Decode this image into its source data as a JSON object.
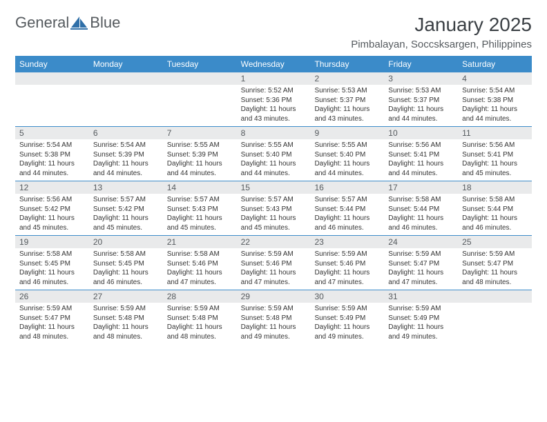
{
  "brand": {
    "name_part1": "General",
    "name_part2": "Blue"
  },
  "header": {
    "month_title": "January 2025",
    "location": "Pimbalayan, Soccsksargen, Philippines"
  },
  "style": {
    "header_bg": "#3b8bc9",
    "header_text": "#ffffff",
    "row_divider": "#3b8bc9",
    "daynum_bg": "#e9eaeb",
    "daynum_text": "#555a5e",
    "body_text": "#333333",
    "page_bg": "#ffffff",
    "title_text": "#3a3f44",
    "location_text": "#555a5e",
    "logo_text_color": "#555a5e",
    "logo_icon_color": "#2f6fa8",
    "font_family": "Arial, Helvetica, sans-serif",
    "month_title_fontsize": 28,
    "location_fontsize": 15,
    "dayheader_fontsize": 12,
    "daynum_fontsize": 12,
    "body_fontsize": 10
  },
  "day_names": [
    "Sunday",
    "Monday",
    "Tuesday",
    "Wednesday",
    "Thursday",
    "Friday",
    "Saturday"
  ],
  "weeks": [
    [
      {
        "n": "",
        "sr": "",
        "ss": "",
        "dl": ""
      },
      {
        "n": "",
        "sr": "",
        "ss": "",
        "dl": ""
      },
      {
        "n": "",
        "sr": "",
        "ss": "",
        "dl": ""
      },
      {
        "n": "1",
        "sr": "Sunrise: 5:52 AM",
        "ss": "Sunset: 5:36 PM",
        "dl": "Daylight: 11 hours and 43 minutes."
      },
      {
        "n": "2",
        "sr": "Sunrise: 5:53 AM",
        "ss": "Sunset: 5:37 PM",
        "dl": "Daylight: 11 hours and 43 minutes."
      },
      {
        "n": "3",
        "sr": "Sunrise: 5:53 AM",
        "ss": "Sunset: 5:37 PM",
        "dl": "Daylight: 11 hours and 44 minutes."
      },
      {
        "n": "4",
        "sr": "Sunrise: 5:54 AM",
        "ss": "Sunset: 5:38 PM",
        "dl": "Daylight: 11 hours and 44 minutes."
      }
    ],
    [
      {
        "n": "5",
        "sr": "Sunrise: 5:54 AM",
        "ss": "Sunset: 5:38 PM",
        "dl": "Daylight: 11 hours and 44 minutes."
      },
      {
        "n": "6",
        "sr": "Sunrise: 5:54 AM",
        "ss": "Sunset: 5:39 PM",
        "dl": "Daylight: 11 hours and 44 minutes."
      },
      {
        "n": "7",
        "sr": "Sunrise: 5:55 AM",
        "ss": "Sunset: 5:39 PM",
        "dl": "Daylight: 11 hours and 44 minutes."
      },
      {
        "n": "8",
        "sr": "Sunrise: 5:55 AM",
        "ss": "Sunset: 5:40 PM",
        "dl": "Daylight: 11 hours and 44 minutes."
      },
      {
        "n": "9",
        "sr": "Sunrise: 5:55 AM",
        "ss": "Sunset: 5:40 PM",
        "dl": "Daylight: 11 hours and 44 minutes."
      },
      {
        "n": "10",
        "sr": "Sunrise: 5:56 AM",
        "ss": "Sunset: 5:41 PM",
        "dl": "Daylight: 11 hours and 44 minutes."
      },
      {
        "n": "11",
        "sr": "Sunrise: 5:56 AM",
        "ss": "Sunset: 5:41 PM",
        "dl": "Daylight: 11 hours and 45 minutes."
      }
    ],
    [
      {
        "n": "12",
        "sr": "Sunrise: 5:56 AM",
        "ss": "Sunset: 5:42 PM",
        "dl": "Daylight: 11 hours and 45 minutes."
      },
      {
        "n": "13",
        "sr": "Sunrise: 5:57 AM",
        "ss": "Sunset: 5:42 PM",
        "dl": "Daylight: 11 hours and 45 minutes."
      },
      {
        "n": "14",
        "sr": "Sunrise: 5:57 AM",
        "ss": "Sunset: 5:43 PM",
        "dl": "Daylight: 11 hours and 45 minutes."
      },
      {
        "n": "15",
        "sr": "Sunrise: 5:57 AM",
        "ss": "Sunset: 5:43 PM",
        "dl": "Daylight: 11 hours and 45 minutes."
      },
      {
        "n": "16",
        "sr": "Sunrise: 5:57 AM",
        "ss": "Sunset: 5:44 PM",
        "dl": "Daylight: 11 hours and 46 minutes."
      },
      {
        "n": "17",
        "sr": "Sunrise: 5:58 AM",
        "ss": "Sunset: 5:44 PM",
        "dl": "Daylight: 11 hours and 46 minutes."
      },
      {
        "n": "18",
        "sr": "Sunrise: 5:58 AM",
        "ss": "Sunset: 5:44 PM",
        "dl": "Daylight: 11 hours and 46 minutes."
      }
    ],
    [
      {
        "n": "19",
        "sr": "Sunrise: 5:58 AM",
        "ss": "Sunset: 5:45 PM",
        "dl": "Daylight: 11 hours and 46 minutes."
      },
      {
        "n": "20",
        "sr": "Sunrise: 5:58 AM",
        "ss": "Sunset: 5:45 PM",
        "dl": "Daylight: 11 hours and 46 minutes."
      },
      {
        "n": "21",
        "sr": "Sunrise: 5:58 AM",
        "ss": "Sunset: 5:46 PM",
        "dl": "Daylight: 11 hours and 47 minutes."
      },
      {
        "n": "22",
        "sr": "Sunrise: 5:59 AM",
        "ss": "Sunset: 5:46 PM",
        "dl": "Daylight: 11 hours and 47 minutes."
      },
      {
        "n": "23",
        "sr": "Sunrise: 5:59 AM",
        "ss": "Sunset: 5:46 PM",
        "dl": "Daylight: 11 hours and 47 minutes."
      },
      {
        "n": "24",
        "sr": "Sunrise: 5:59 AM",
        "ss": "Sunset: 5:47 PM",
        "dl": "Daylight: 11 hours and 47 minutes."
      },
      {
        "n": "25",
        "sr": "Sunrise: 5:59 AM",
        "ss": "Sunset: 5:47 PM",
        "dl": "Daylight: 11 hours and 48 minutes."
      }
    ],
    [
      {
        "n": "26",
        "sr": "Sunrise: 5:59 AM",
        "ss": "Sunset: 5:47 PM",
        "dl": "Daylight: 11 hours and 48 minutes."
      },
      {
        "n": "27",
        "sr": "Sunrise: 5:59 AM",
        "ss": "Sunset: 5:48 PM",
        "dl": "Daylight: 11 hours and 48 minutes."
      },
      {
        "n": "28",
        "sr": "Sunrise: 5:59 AM",
        "ss": "Sunset: 5:48 PM",
        "dl": "Daylight: 11 hours and 48 minutes."
      },
      {
        "n": "29",
        "sr": "Sunrise: 5:59 AM",
        "ss": "Sunset: 5:48 PM",
        "dl": "Daylight: 11 hours and 49 minutes."
      },
      {
        "n": "30",
        "sr": "Sunrise: 5:59 AM",
        "ss": "Sunset: 5:49 PM",
        "dl": "Daylight: 11 hours and 49 minutes."
      },
      {
        "n": "31",
        "sr": "Sunrise: 5:59 AM",
        "ss": "Sunset: 5:49 PM",
        "dl": "Daylight: 11 hours and 49 minutes."
      },
      {
        "n": "",
        "sr": "",
        "ss": "",
        "dl": ""
      }
    ]
  ]
}
